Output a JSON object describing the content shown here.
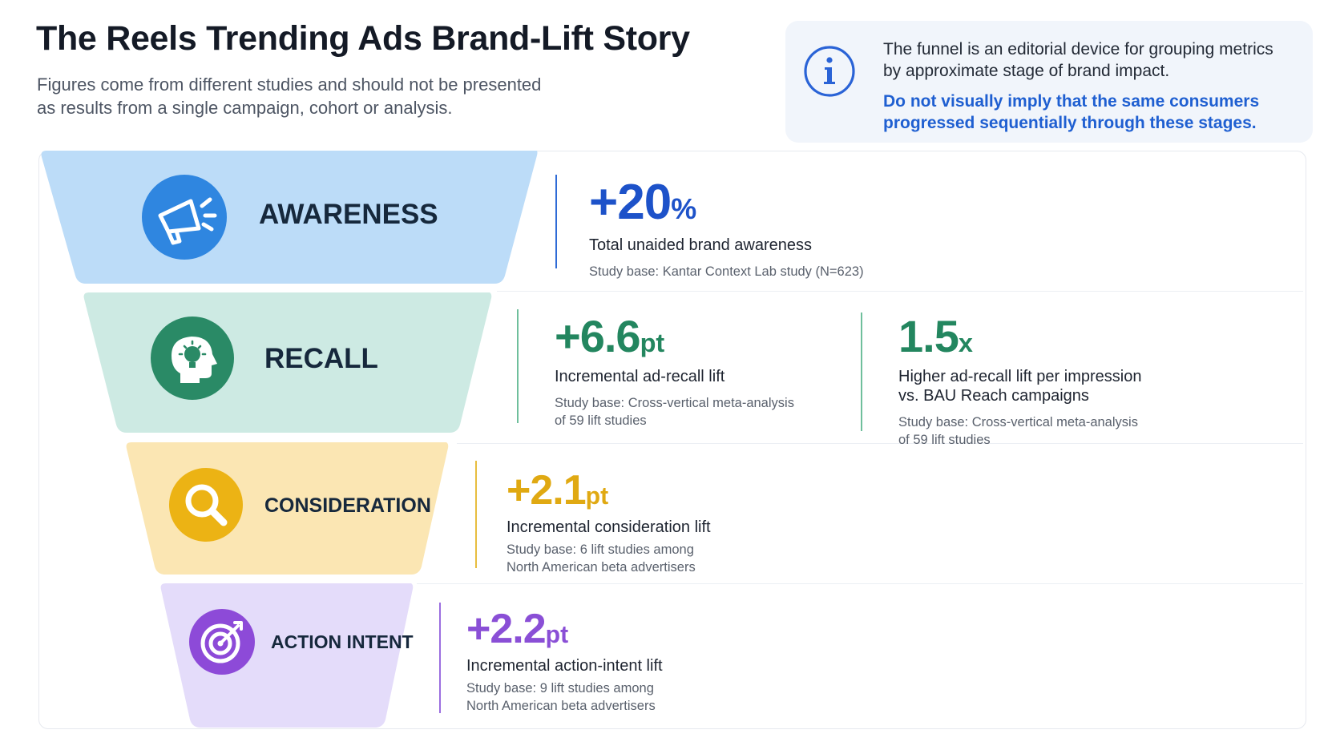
{
  "header": {
    "title": "The Reels Trending Ads Brand-Lift Story",
    "subtitle_lines": [
      "Figures come from different studies and should not be presented",
      "as results from a single campaign, cohort or analysis."
    ]
  },
  "info_box": {
    "icon": "info-icon",
    "text_lines": [
      "The funnel is an editorial device for grouping metrics",
      "by approximate stage of brand impact."
    ],
    "warning_lines": [
      "Do not visually imply that the same consumers",
      "progressed sequentially through these stages."
    ],
    "accent_color": "#1f5fd1"
  },
  "stages": [
    {
      "label": "AWARENESS",
      "icon": "megaphone-icon",
      "fill_color": "#bcdcf8",
      "icon_color": "#2f86e0",
      "accent_color": "#1d52c9",
      "metrics": [
        {
          "sign": "+",
          "number": "20",
          "unit": "%",
          "description_lines": [
            "Total unaided brand awareness"
          ],
          "base_lines": [
            "Study base: Kantar Context Lab study (N=623)"
          ]
        }
      ]
    },
    {
      "label": "RECALL",
      "icon": "head-lightbulb-icon",
      "fill_color": "#cdeae3",
      "icon_color": "#2a8a66",
      "accent_color": "#23865f",
      "metrics": [
        {
          "sign": "+",
          "number": "6.6",
          "unit": "pt",
          "description_lines": [
            "Incremental ad-recall lift"
          ],
          "base_lines": [
            "Study base: Cross-vertical meta-analysis",
            "of 59 lift studies"
          ]
        },
        {
          "sign": "",
          "number": "1.5",
          "unit": "x",
          "description_lines": [
            "Higher ad-recall lift per impression",
            "vs. BAU Reach campaigns"
          ],
          "base_lines": [
            "Study base: Cross-vertical meta-analysis",
            "of 59 lift studies"
          ]
        }
      ]
    },
    {
      "label": "CONSIDERATION",
      "icon": "magnifier-icon",
      "fill_color": "#fbe6b3",
      "icon_color": "#ecb314",
      "accent_color": "#e0a912",
      "metrics": [
        {
          "sign": "+",
          "number": "2.1",
          "unit": "pt",
          "description_lines": [
            "Incremental consideration lift"
          ],
          "base_lines": [
            "Study base: 6 lift studies among",
            "North American beta advertisers"
          ]
        }
      ]
    },
    {
      "label": "ACTION INTENT",
      "icon": "target-icon",
      "fill_color": "#e4dcfa",
      "icon_color": "#8d4ad8",
      "accent_color": "#8a4fd6",
      "metrics": [
        {
          "sign": "+",
          "number": "2.2",
          "unit": "pt",
          "description_lines": [
            "Incremental action-intent lift"
          ],
          "base_lines": [
            "Study base: 9 lift studies among",
            "North American beta advertisers"
          ]
        }
      ]
    }
  ]
}
